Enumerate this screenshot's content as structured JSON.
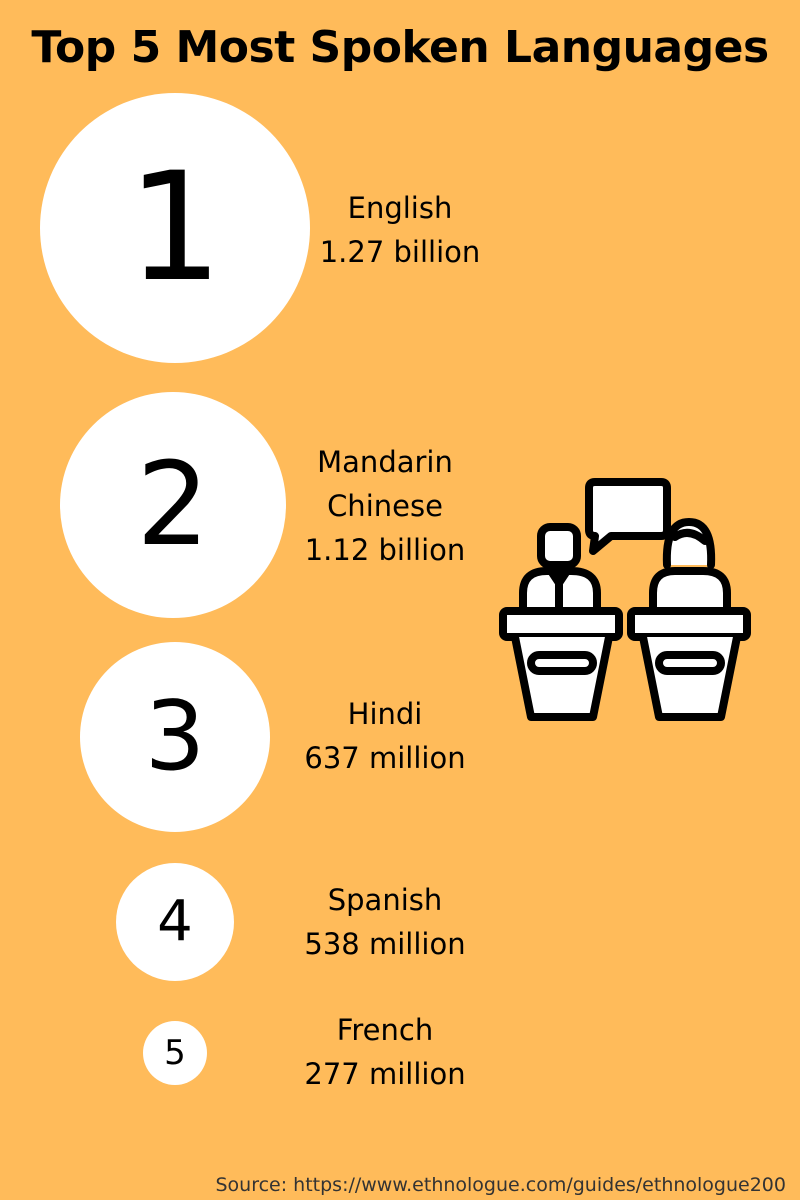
{
  "title": "Top 5 Most Spoken Languages",
  "languages": [
    {
      "rank": "1",
      "name": "English",
      "speakers": "1.27 billion"
    },
    {
      "rank": "2",
      "name_line1": "Mandarin",
      "name_line2": "Chinese",
      "speakers": "1.12 billion"
    },
    {
      "rank": "3",
      "name": "Hindi",
      "speakers": "637 million"
    },
    {
      "rank": "4",
      "name": "Spanish",
      "speakers": "538 million"
    },
    {
      "rank": "5",
      "name": "French",
      "speakers": "277 million"
    }
  ],
  "illustration": "two-speakers-at-podiums-icon",
  "source": "Source: https://www.ethnologue.com/guides/ethnologue200",
  "colors": {
    "background": "#FFBB5A",
    "circle": "#FFFFFF",
    "text": "#000000"
  }
}
